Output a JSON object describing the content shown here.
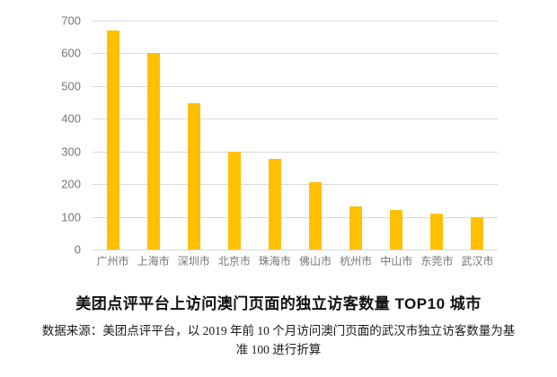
{
  "page": {
    "background": "#ffffff"
  },
  "chart_data": {
    "type": "bar",
    "title": "美团点评平台上访问澳门页面的独立访客数量 TOP10 城市",
    "categories": [
      "广州市",
      "上海市",
      "深圳市",
      "北京市",
      "珠海市",
      "佛山市",
      "杭州市",
      "中山市",
      "东莞市",
      "武汉市"
    ],
    "values": [
      670,
      600,
      448,
      298,
      277,
      205,
      133,
      120,
      110,
      100
    ],
    "xlabel": "",
    "ylabel": "",
    "ylim": [
      0,
      700
    ],
    "yticks": [
      0,
      100,
      200,
      300,
      400,
      500,
      600,
      700
    ],
    "grid": "horizontal",
    "legend": "none",
    "bar_color": "#FFC000",
    "gridline_color": "#D9D9D9",
    "axis_label_color": "#757575"
  },
  "source_note": {
    "line1": "数据来源：美团点评平台，以 2019 年前 10 个月访问澳门页面的武汉市独立访客数量为基",
    "line2": "准 100 进行折算"
  }
}
